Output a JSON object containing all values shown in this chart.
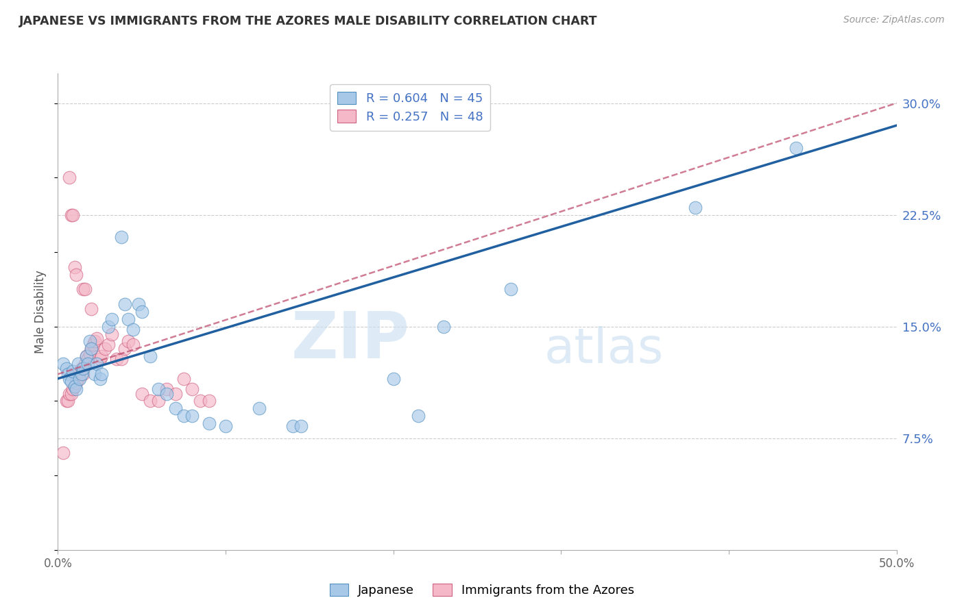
{
  "title": "JAPANESE VS IMMIGRANTS FROM THE AZORES MALE DISABILITY CORRELATION CHART",
  "source": "Source: ZipAtlas.com",
  "ylabel": "Male Disability",
  "watermark_zip": "ZIP",
  "watermark_atlas": "atlas",
  "xlim": [
    0.0,
    0.5
  ],
  "ylim": [
    0.0,
    0.32
  ],
  "xtick_positions": [
    0.0,
    0.1,
    0.2,
    0.3,
    0.4,
    0.5
  ],
  "xtick_labels": [
    "0.0%",
    "",
    "",
    "",
    "",
    "50.0%"
  ],
  "yticks_right": [
    0.075,
    0.15,
    0.225,
    0.3
  ],
  "ytick_labels_right": [
    "7.5%",
    "15.0%",
    "22.5%",
    "30.0%"
  ],
  "legend_blue_label": "Japanese",
  "legend_pink_label": "Immigrants from the Azores",
  "blue_color": "#a8c8e8",
  "pink_color": "#f4b8c8",
  "blue_edge_color": "#5090c0",
  "pink_edge_color": "#d06080",
  "blue_line_color": "#2060a0",
  "pink_line_color": "#c05070",
  "blue_scatter": [
    [
      0.003,
      0.125
    ],
    [
      0.005,
      0.122
    ],
    [
      0.006,
      0.118
    ],
    [
      0.007,
      0.115
    ],
    [
      0.008,
      0.113
    ],
    [
      0.009,
      0.12
    ],
    [
      0.01,
      0.11
    ],
    [
      0.011,
      0.108
    ],
    [
      0.012,
      0.125
    ],
    [
      0.013,
      0.115
    ],
    [
      0.014,
      0.118
    ],
    [
      0.015,
      0.122
    ],
    [
      0.017,
      0.13
    ],
    [
      0.018,
      0.125
    ],
    [
      0.019,
      0.14
    ],
    [
      0.02,
      0.135
    ],
    [
      0.022,
      0.118
    ],
    [
      0.023,
      0.125
    ],
    [
      0.025,
      0.115
    ],
    [
      0.026,
      0.118
    ],
    [
      0.03,
      0.15
    ],
    [
      0.032,
      0.155
    ],
    [
      0.038,
      0.21
    ],
    [
      0.04,
      0.165
    ],
    [
      0.042,
      0.155
    ],
    [
      0.045,
      0.148
    ],
    [
      0.048,
      0.165
    ],
    [
      0.05,
      0.16
    ],
    [
      0.055,
      0.13
    ],
    [
      0.06,
      0.108
    ],
    [
      0.065,
      0.105
    ],
    [
      0.07,
      0.095
    ],
    [
      0.075,
      0.09
    ],
    [
      0.08,
      0.09
    ],
    [
      0.09,
      0.085
    ],
    [
      0.1,
      0.083
    ],
    [
      0.12,
      0.095
    ],
    [
      0.14,
      0.083
    ],
    [
      0.145,
      0.083
    ],
    [
      0.2,
      0.115
    ],
    [
      0.215,
      0.09
    ],
    [
      0.23,
      0.15
    ],
    [
      0.27,
      0.175
    ],
    [
      0.38,
      0.23
    ],
    [
      0.44,
      0.27
    ]
  ],
  "pink_scatter": [
    [
      0.003,
      0.065
    ],
    [
      0.005,
      0.1
    ],
    [
      0.006,
      0.1
    ],
    [
      0.007,
      0.105
    ],
    [
      0.008,
      0.105
    ],
    [
      0.009,
      0.108
    ],
    [
      0.01,
      0.11
    ],
    [
      0.01,
      0.118
    ],
    [
      0.011,
      0.112
    ],
    [
      0.012,
      0.115
    ],
    [
      0.013,
      0.12
    ],
    [
      0.014,
      0.122
    ],
    [
      0.015,
      0.118
    ],
    [
      0.016,
      0.125
    ],
    [
      0.017,
      0.13
    ],
    [
      0.018,
      0.128
    ],
    [
      0.019,
      0.132
    ],
    [
      0.02,
      0.135
    ],
    [
      0.021,
      0.138
    ],
    [
      0.022,
      0.14
    ],
    [
      0.023,
      0.142
    ],
    [
      0.025,
      0.128
    ],
    [
      0.026,
      0.13
    ],
    [
      0.028,
      0.135
    ],
    [
      0.03,
      0.138
    ],
    [
      0.032,
      0.145
    ],
    [
      0.035,
      0.128
    ],
    [
      0.038,
      0.128
    ],
    [
      0.04,
      0.135
    ],
    [
      0.042,
      0.14
    ],
    [
      0.045,
      0.138
    ],
    [
      0.05,
      0.105
    ],
    [
      0.055,
      0.1
    ],
    [
      0.06,
      0.1
    ],
    [
      0.065,
      0.108
    ],
    [
      0.07,
      0.105
    ],
    [
      0.075,
      0.115
    ],
    [
      0.08,
      0.108
    ],
    [
      0.085,
      0.1
    ],
    [
      0.09,
      0.1
    ],
    [
      0.007,
      0.25
    ],
    [
      0.008,
      0.225
    ],
    [
      0.009,
      0.225
    ],
    [
      0.01,
      0.19
    ],
    [
      0.011,
      0.185
    ],
    [
      0.015,
      0.175
    ],
    [
      0.016,
      0.175
    ],
    [
      0.02,
      0.162
    ]
  ],
  "grid_color": "#cccccc",
  "background_color": "#ffffff"
}
